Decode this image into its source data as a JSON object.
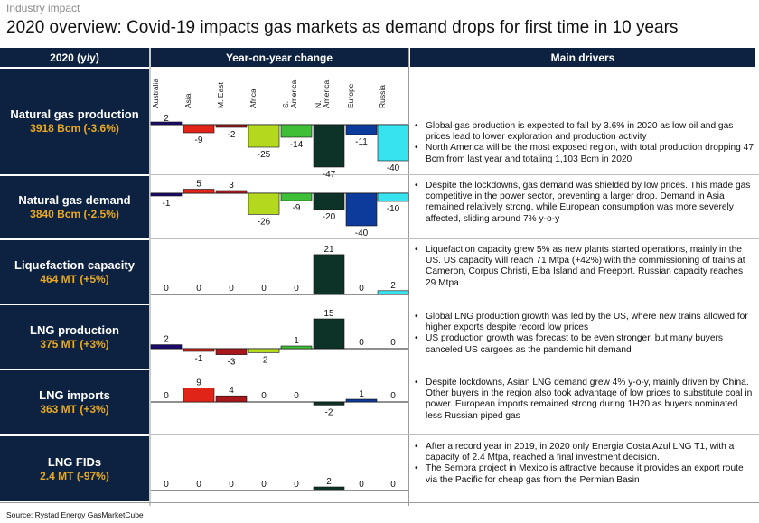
{
  "supertitle": "Industry impact",
  "title": "2020 overview: Covid-19 impacts gas markets as demand drops for first time in 10 years",
  "headers": {
    "col1": "2020 (y/y)",
    "col2": "Year-on-year change",
    "col3": "Main drivers"
  },
  "source": "Source: Rystad Energy GasMarketCube",
  "colors": {
    "header_bg": "#0d2240",
    "accent_text": "#e8a826",
    "region": {
      "Australia": "#1b0a6b",
      "Asia": "#e02418",
      "M. East": "#a8171b",
      "Africa": "#b4d81e",
      "S. America": "#3fbf37",
      "N. America": "#0d3328",
      "Europe": "#0d3b9c",
      "Russia": "#36e3ee"
    }
  },
  "rows": [
    {
      "title": "Natural gas production",
      "subtitle": "3918 Bcm (-3.6%)",
      "drivers": [
        "Global gas production is expected to fall by 3.6% in 2020 as low oil and gas prices lead to lower exploration and production activity",
        "North America will be the most exposed region, with total production dropping 47 Bcm from last year and totaling 1,103 Bcm in 2020"
      ]
    },
    {
      "title": "Natural gas demand",
      "subtitle": "3840 Bcm (-2.5%)",
      "drivers": [
        "Despite the lockdowns, gas demand was shielded by low prices. This made gas competitive in the power sector, preventing a larger drop. Demand in Asia remained relatively strong, while European consumption was more severely affected, sliding around 7% y-o-y"
      ]
    },
    {
      "title": "Liquefaction capacity",
      "subtitle": "464 MT (+5%)",
      "drivers": [
        "Liquefaction capacity grew 5% as new plants started operations, mainly in the US. US capacity will reach 71 Mtpa (+42%) with the commissioning of trains at Cameron, Corpus Christi, Elba Island and Freeport. Russian capacity reaches 29 Mtpa"
      ]
    },
    {
      "title": "LNG production",
      "subtitle": "375 MT (+3%)",
      "drivers": [
        "Global LNG production growth was led by the US, where new trains allowed for higher exports despite record low prices",
        "US production growth was forecast to be even stronger, but many buyers canceled US cargoes as the pandemic hit demand"
      ]
    },
    {
      "title": "LNG imports",
      "subtitle": "363 MT (+3%)",
      "drivers": [
        "Despite lockdowns, Asian LNG demand grew 4% y-o-y, mainly driven by China. Other buyers in the region also took advantage of low prices to substitute coal in power. European imports remained strong during 1H20 as buyers nominated less Russian piped gas"
      ]
    },
    {
      "title": "LNG FIDs",
      "subtitle": "2.4 MT (-97%)",
      "drivers": [
        "After a record year in 2019, in 2020 only Energia Costa Azul LNG T1, with a capacity of 2.4 Mtpa, reached a final investment decision.",
        "The Sempra project in Mexico is attractive because it provides an export route via the Pacific for cheap gas from the Permian Basin"
      ]
    }
  ],
  "chart_data": {
    "type": "bar",
    "categories": [
      "Australia",
      "Asia",
      "M. East",
      "Africa",
      "S. America",
      "N. America",
      "Europe",
      "Russia"
    ],
    "series": [
      {
        "name": "Natural gas production",
        "values": [
          2,
          -9,
          -2,
          -25,
          -14,
          -47,
          -11,
          -40
        ]
      },
      {
        "name": "Natural gas demand",
        "values": [
          -1,
          5,
          3,
          -26,
          -9,
          -20,
          -40,
          -10
        ]
      },
      {
        "name": "Liquefaction capacity",
        "values": [
          0,
          0,
          0,
          0,
          0,
          21,
          0,
          2
        ]
      },
      {
        "name": "LNG production",
        "values": [
          2,
          -1,
          -3,
          -2,
          1,
          15,
          0,
          0
        ]
      },
      {
        "name": "LNG imports",
        "values": [
          0,
          9,
          4,
          0,
          0,
          -2,
          1,
          0
        ]
      },
      {
        "name": "LNG FIDs",
        "values": [
          0,
          0,
          0,
          0,
          0,
          2,
          0,
          0
        ]
      }
    ]
  }
}
